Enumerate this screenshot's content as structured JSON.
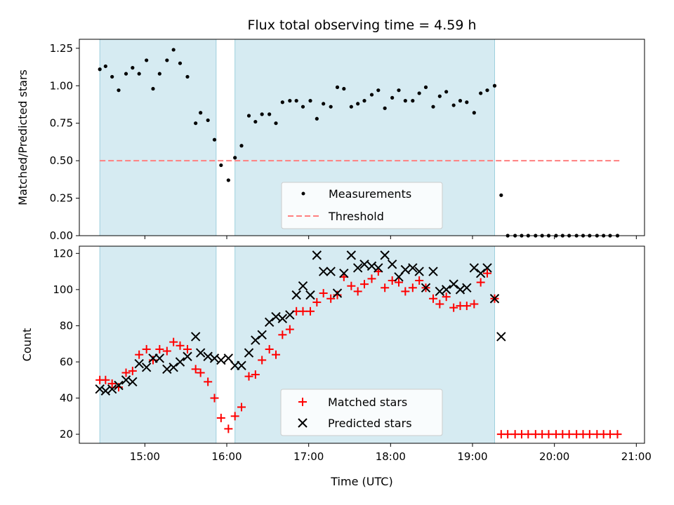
{
  "chart_data": [
    {
      "type": "scatter",
      "panel": "top",
      "title": "Flux total observing time = 4.59 h",
      "xlabel": "",
      "ylabel": "Matched/Predicted stars",
      "ylim": [
        0,
        1.31
      ],
      "yticks": [
        0.0,
        0.25,
        0.5,
        0.75,
        1.0,
        1.25
      ],
      "ytick_labels": [
        "0.00",
        "0.25",
        "0.50",
        "0.75",
        "1.00",
        "1.25"
      ],
      "xlim": [
        14.2,
        21.1
      ],
      "xticks": [
        15,
        16,
        17,
        18,
        19,
        20,
        21
      ],
      "shaded_intervals": [
        [
          14.45,
          15.87
        ],
        [
          16.1,
          19.27
        ]
      ],
      "threshold": {
        "name": "Threshold",
        "value": 0.5,
        "x_range": [
          14.45,
          20.8
        ],
        "color": "#ff7f7f"
      },
      "legend": {
        "placement": "lower-center",
        "entries": [
          "Measurements",
          "Threshold"
        ]
      },
      "series": [
        {
          "name": "Measurements",
          "color": "#000000",
          "points": [
            [
              14.45,
              1.11
            ],
            [
              14.52,
              1.13
            ],
            [
              14.6,
              1.06
            ],
            [
              14.68,
              0.97
            ],
            [
              14.77,
              1.08
            ],
            [
              14.85,
              1.12
            ],
            [
              14.93,
              1.08
            ],
            [
              15.02,
              1.17
            ],
            [
              15.1,
              0.98
            ],
            [
              15.18,
              1.08
            ],
            [
              15.27,
              1.17
            ],
            [
              15.35,
              1.24
            ],
            [
              15.43,
              1.15
            ],
            [
              15.52,
              1.06
            ],
            [
              15.62,
              0.75
            ],
            [
              15.68,
              0.82
            ],
            [
              15.77,
              0.77
            ],
            [
              15.85,
              0.64
            ],
            [
              15.93,
              0.47
            ],
            [
              16.02,
              0.37
            ],
            [
              16.1,
              0.52
            ],
            [
              16.18,
              0.6
            ],
            [
              16.27,
              0.8
            ],
            [
              16.35,
              0.76
            ],
            [
              16.43,
              0.81
            ],
            [
              16.52,
              0.81
            ],
            [
              16.6,
              0.75
            ],
            [
              16.68,
              0.89
            ],
            [
              16.77,
              0.9
            ],
            [
              16.85,
              0.9
            ],
            [
              16.93,
              0.86
            ],
            [
              17.02,
              0.9
            ],
            [
              17.1,
              0.78
            ],
            [
              17.18,
              0.88
            ],
            [
              17.27,
              0.86
            ],
            [
              17.35,
              0.99
            ],
            [
              17.43,
              0.98
            ],
            [
              17.52,
              0.86
            ],
            [
              17.6,
              0.88
            ],
            [
              17.68,
              0.9
            ],
            [
              17.77,
              0.94
            ],
            [
              17.85,
              0.97
            ],
            [
              17.93,
              0.85
            ],
            [
              18.02,
              0.92
            ],
            [
              18.1,
              0.97
            ],
            [
              18.18,
              0.9
            ],
            [
              18.27,
              0.9
            ],
            [
              18.35,
              0.95
            ],
            [
              18.43,
              0.99
            ],
            [
              18.52,
              0.86
            ],
            [
              18.6,
              0.93
            ],
            [
              18.68,
              0.96
            ],
            [
              18.77,
              0.87
            ],
            [
              18.85,
              0.9
            ],
            [
              18.93,
              0.89
            ],
            [
              19.02,
              0.82
            ],
            [
              19.1,
              0.95
            ],
            [
              19.18,
              0.97
            ],
            [
              19.27,
              1.0
            ],
            [
              19.35,
              0.27
            ],
            [
              19.43,
              0.0
            ],
            [
              19.52,
              0.0
            ],
            [
              19.6,
              0.0
            ],
            [
              19.68,
              0.0
            ],
            [
              19.77,
              0.0
            ],
            [
              19.85,
              0.0
            ],
            [
              19.93,
              0.0
            ],
            [
              20.02,
              0.0
            ],
            [
              20.1,
              0.0
            ],
            [
              20.18,
              0.0
            ],
            [
              20.27,
              0.0
            ],
            [
              20.35,
              0.0
            ],
            [
              20.43,
              0.0
            ],
            [
              20.52,
              0.0
            ],
            [
              20.6,
              0.0
            ],
            [
              20.68,
              0.0
            ],
            [
              20.77,
              0.0
            ]
          ]
        }
      ]
    },
    {
      "type": "scatter",
      "panel": "bottom",
      "title": "",
      "xlabel": "Time (UTC)",
      "ylabel": "Count",
      "ylim": [
        15,
        124
      ],
      "yticks": [
        20,
        40,
        60,
        80,
        100,
        120
      ],
      "ytick_labels": [
        "20",
        "40",
        "60",
        "80",
        "100",
        "120"
      ],
      "xlim": [
        14.2,
        21.1
      ],
      "xticks": [
        15,
        16,
        17,
        18,
        19,
        20,
        21
      ],
      "xtick_labels": [
        "15:00",
        "16:00",
        "17:00",
        "18:00",
        "19:00",
        "20:00",
        "21:00"
      ],
      "shaded_intervals": [
        [
          14.45,
          15.87
        ],
        [
          16.1,
          19.27
        ]
      ],
      "legend": {
        "placement": "lower-center",
        "entries": [
          "Matched stars",
          "Predicted stars"
        ]
      },
      "series": [
        {
          "name": "Matched stars",
          "marker": "plus",
          "color": "#ff0000",
          "points": [
            [
              14.45,
              50
            ],
            [
              14.52,
              50
            ],
            [
              14.6,
              48
            ],
            [
              14.68,
              46
            ],
            [
              14.77,
              54
            ],
            [
              14.85,
              55
            ],
            [
              14.93,
              64
            ],
            [
              15.02,
              67
            ],
            [
              15.1,
              61
            ],
            [
              15.18,
              67
            ],
            [
              15.27,
              66
            ],
            [
              15.35,
              71
            ],
            [
              15.43,
              69
            ],
            [
              15.52,
              67
            ],
            [
              15.62,
              56
            ],
            [
              15.68,
              54
            ],
            [
              15.77,
              49
            ],
            [
              15.85,
              40
            ],
            [
              15.93,
              29
            ],
            [
              16.02,
              23
            ],
            [
              16.1,
              30
            ],
            [
              16.18,
              35
            ],
            [
              16.27,
              52
            ],
            [
              16.35,
              53
            ],
            [
              16.43,
              61
            ],
            [
              16.52,
              67
            ],
            [
              16.6,
              64
            ],
            [
              16.68,
              75
            ],
            [
              16.77,
              78
            ],
            [
              16.85,
              88
            ],
            [
              16.93,
              88
            ],
            [
              17.02,
              88
            ],
            [
              17.1,
              93
            ],
            [
              17.18,
              98
            ],
            [
              17.27,
              95
            ],
            [
              17.35,
              97
            ],
            [
              17.43,
              107
            ],
            [
              17.52,
              102
            ],
            [
              17.6,
              99
            ],
            [
              17.68,
              103
            ],
            [
              17.77,
              106
            ],
            [
              17.85,
              110
            ],
            [
              17.93,
              101
            ],
            [
              18.02,
              105
            ],
            [
              18.1,
              104
            ],
            [
              18.18,
              99
            ],
            [
              18.27,
              101
            ],
            [
              18.35,
              105
            ],
            [
              18.43,
              101
            ],
            [
              18.52,
              95
            ],
            [
              18.6,
              92
            ],
            [
              18.68,
              96
            ],
            [
              18.77,
              90
            ],
            [
              18.85,
              91
            ],
            [
              18.93,
              91
            ],
            [
              19.02,
              92
            ],
            [
              19.1,
              104
            ],
            [
              19.18,
              109
            ],
            [
              19.27,
              95
            ],
            [
              19.35,
              20
            ],
            [
              19.43,
              20
            ],
            [
              19.52,
              20
            ],
            [
              19.6,
              20
            ],
            [
              19.68,
              20
            ],
            [
              19.77,
              20
            ],
            [
              19.85,
              20
            ],
            [
              19.93,
              20
            ],
            [
              20.02,
              20
            ],
            [
              20.1,
              20
            ],
            [
              20.18,
              20
            ],
            [
              20.27,
              20
            ],
            [
              20.35,
              20
            ],
            [
              20.43,
              20
            ],
            [
              20.52,
              20
            ],
            [
              20.6,
              20
            ],
            [
              20.68,
              20
            ],
            [
              20.77,
              20
            ]
          ]
        },
        {
          "name": "Predicted stars",
          "marker": "x",
          "color": "#000000",
          "points": [
            [
              14.45,
              45
            ],
            [
              14.52,
              44
            ],
            [
              14.6,
              45
            ],
            [
              14.68,
              47
            ],
            [
              14.77,
              50
            ],
            [
              14.85,
              49
            ],
            [
              14.93,
              59
            ],
            [
              15.02,
              57
            ],
            [
              15.1,
              62
            ],
            [
              15.18,
              62
            ],
            [
              15.27,
              56
            ],
            [
              15.35,
              57
            ],
            [
              15.43,
              60
            ],
            [
              15.52,
              63
            ],
            [
              15.62,
              74
            ],
            [
              15.68,
              65
            ],
            [
              15.77,
              63
            ],
            [
              15.85,
              62
            ],
            [
              15.93,
              61
            ],
            [
              16.02,
              62
            ],
            [
              16.1,
              58
            ],
            [
              16.18,
              58
            ],
            [
              16.27,
              65
            ],
            [
              16.35,
              72
            ],
            [
              16.43,
              75
            ],
            [
              16.52,
              82
            ],
            [
              16.6,
              85
            ],
            [
              16.68,
              84
            ],
            [
              16.77,
              86
            ],
            [
              16.85,
              97
            ],
            [
              16.93,
              102
            ],
            [
              17.02,
              97
            ],
            [
              17.1,
              119
            ],
            [
              17.18,
              110
            ],
            [
              17.27,
              110
            ],
            [
              17.35,
              98
            ],
            [
              17.43,
              109
            ],
            [
              17.52,
              119
            ],
            [
              17.6,
              112
            ],
            [
              17.68,
              114
            ],
            [
              17.77,
              113
            ],
            [
              17.85,
              112
            ],
            [
              17.93,
              119
            ],
            [
              18.02,
              114
            ],
            [
              18.1,
              107
            ],
            [
              18.18,
              111
            ],
            [
              18.27,
              112
            ],
            [
              18.35,
              110
            ],
            [
              18.43,
              101
            ],
            [
              18.52,
              110
            ],
            [
              18.6,
              99
            ],
            [
              18.68,
              100
            ],
            [
              18.77,
              103
            ],
            [
              18.85,
              100
            ],
            [
              18.93,
              101
            ],
            [
              19.02,
              112
            ],
            [
              19.1,
              109
            ],
            [
              19.18,
              112
            ],
            [
              19.27,
              95
            ],
            [
              19.35,
              74
            ]
          ]
        }
      ]
    }
  ]
}
